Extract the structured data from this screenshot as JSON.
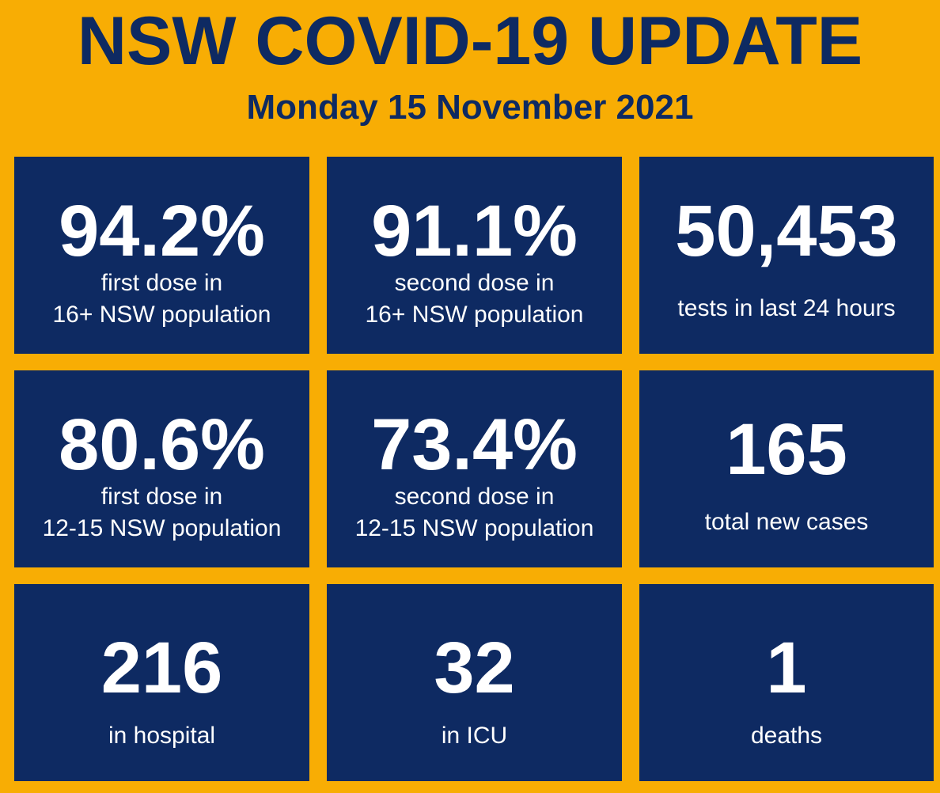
{
  "title": "NSW COVID-19 UPDATE",
  "date": "Monday 15 November 2021",
  "colors": {
    "background": "#f8ad04",
    "tile": "#0e2a62",
    "text_on_tile": "#ffffff"
  },
  "stats": [
    {
      "value": "94.2%",
      "label": "first dose in\n16+ NSW population"
    },
    {
      "value": "91.1%",
      "label": "second dose in\n16+ NSW population"
    },
    {
      "value": "50,453",
      "label": "tests in last 24 hours"
    },
    {
      "value": "80.6%",
      "label": "first dose in\n12-15 NSW population"
    },
    {
      "value": "73.4%",
      "label": "second dose in\n12-15 NSW population"
    },
    {
      "value": "165",
      "label": "total new cases"
    },
    {
      "value": "216",
      "label": "in hospital"
    },
    {
      "value": "32",
      "label": "in ICU"
    },
    {
      "value": "1",
      "label": "deaths"
    }
  ]
}
